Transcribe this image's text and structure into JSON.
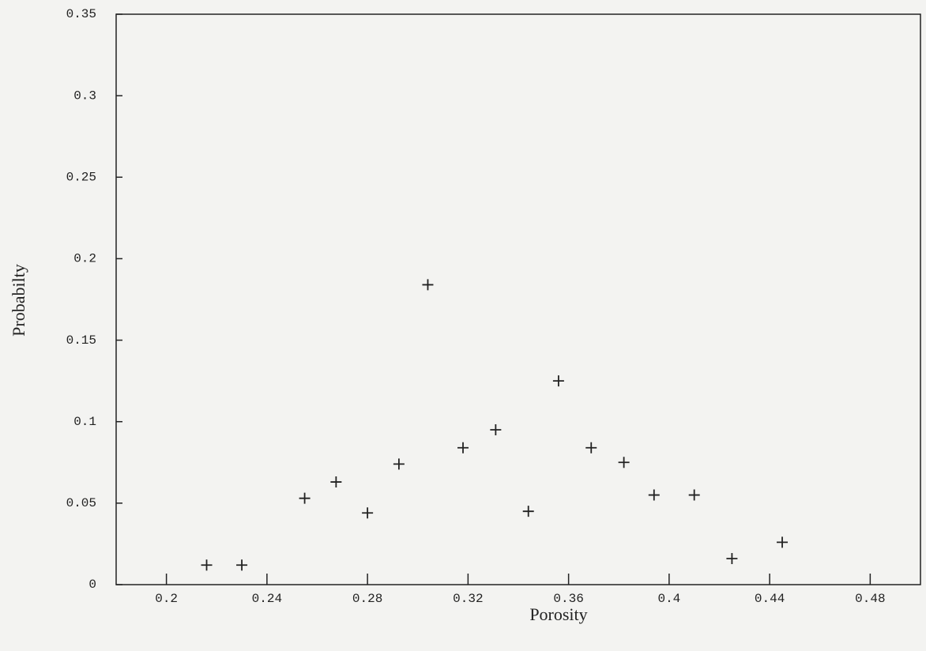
{
  "chart_data": {
    "type": "scatter",
    "x_label": "Porosity",
    "y_label": "Probabilty",
    "x": [
      0.216,
      0.23,
      0.255,
      0.2675,
      0.28,
      0.2925,
      0.304,
      0.318,
      0.331,
      0.344,
      0.356,
      0.369,
      0.382,
      0.394,
      0.41,
      0.425,
      0.445
    ],
    "values": [
      0.012,
      0.012,
      0.053,
      0.063,
      0.044,
      0.074,
      0.184,
      0.084,
      0.095,
      0.045,
      0.125,
      0.084,
      0.075,
      0.055,
      0.055,
      0.016,
      0.026
    ],
    "color": "#222222",
    "xlim": [
      0.18,
      0.5
    ],
    "xticks": [
      0.2,
      0.24,
      0.28,
      0.32,
      0.36,
      0.4,
      0.44,
      0.48
    ],
    "ylim": [
      0,
      0.35
    ],
    "yticks": [
      0,
      0.05,
      0.1,
      0.15,
      0.2,
      0.25,
      0.3,
      0.35
    ],
    "grid": false
  }
}
